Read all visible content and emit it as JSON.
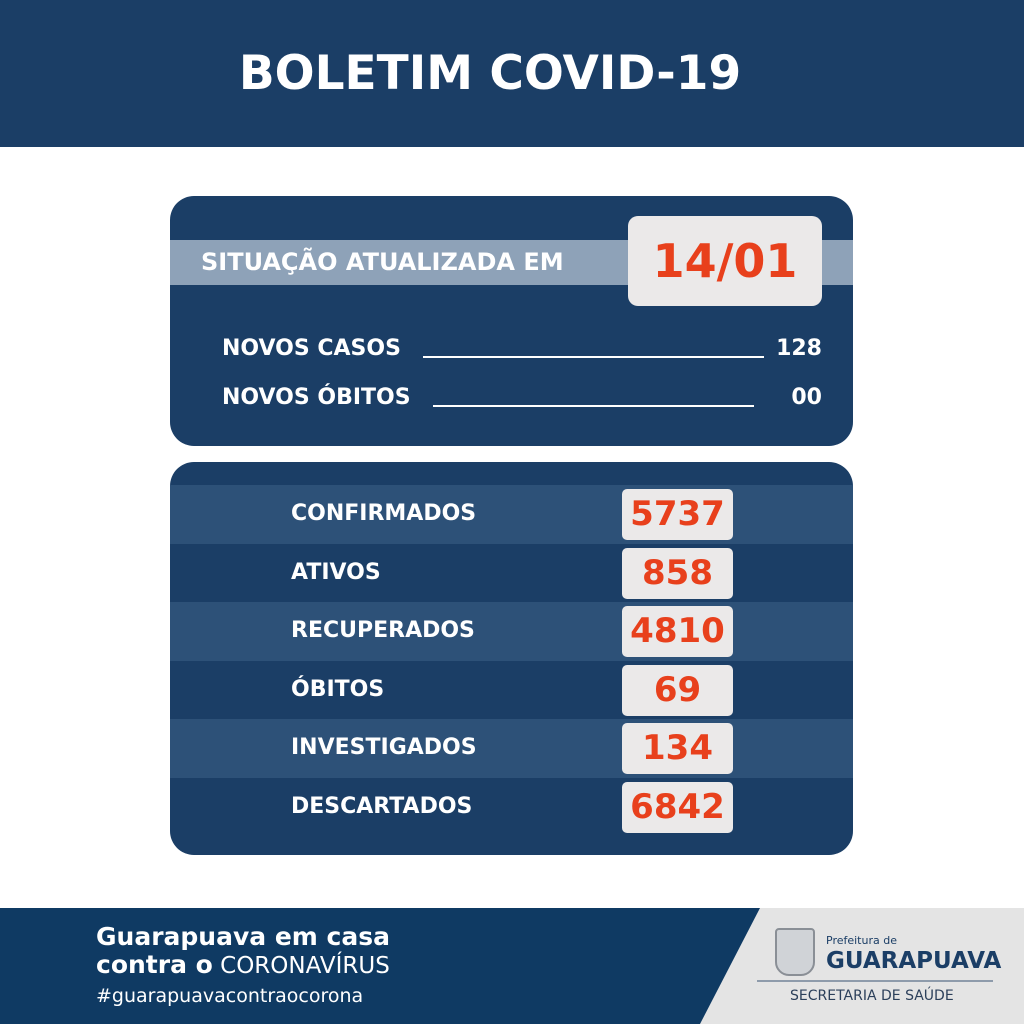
{
  "header": {
    "title": "BOLETIM COVID-19"
  },
  "update": {
    "label": "SITUAÇÃO ATUALIZADA EM",
    "date": "14/01"
  },
  "new": [
    {
      "label": "NOVOS CASOS",
      "value": "128"
    },
    {
      "label": "NOVOS ÓBITOS",
      "value": "00"
    }
  ],
  "stats": [
    {
      "label": "CONFIRMADOS",
      "value": "5737"
    },
    {
      "label": "ATIVOS",
      "value": "858"
    },
    {
      "label": "RECUPERADOS",
      "value": "4810"
    },
    {
      "label": "ÓBITOS",
      "value": "69"
    },
    {
      "label": "INVESTIGADOS",
      "value": "134"
    },
    {
      "label": "DESCARTADOS",
      "value": "6842"
    }
  ],
  "footer": {
    "line1": "Guarapuava em casa",
    "line2_bold": "contra o",
    "line2_rest": "CORONAVÍRUS",
    "hashtag": "#guarapuavacontraocorona",
    "logo_small": "Prefeitura de",
    "logo_big": "GUARAPUAVA",
    "logo_dept": "SECRETARIA DE SAÚDE"
  },
  "colors": {
    "navy": "#1b3e66",
    "accent": "#e8401c",
    "band": "#8ea2b8"
  }
}
